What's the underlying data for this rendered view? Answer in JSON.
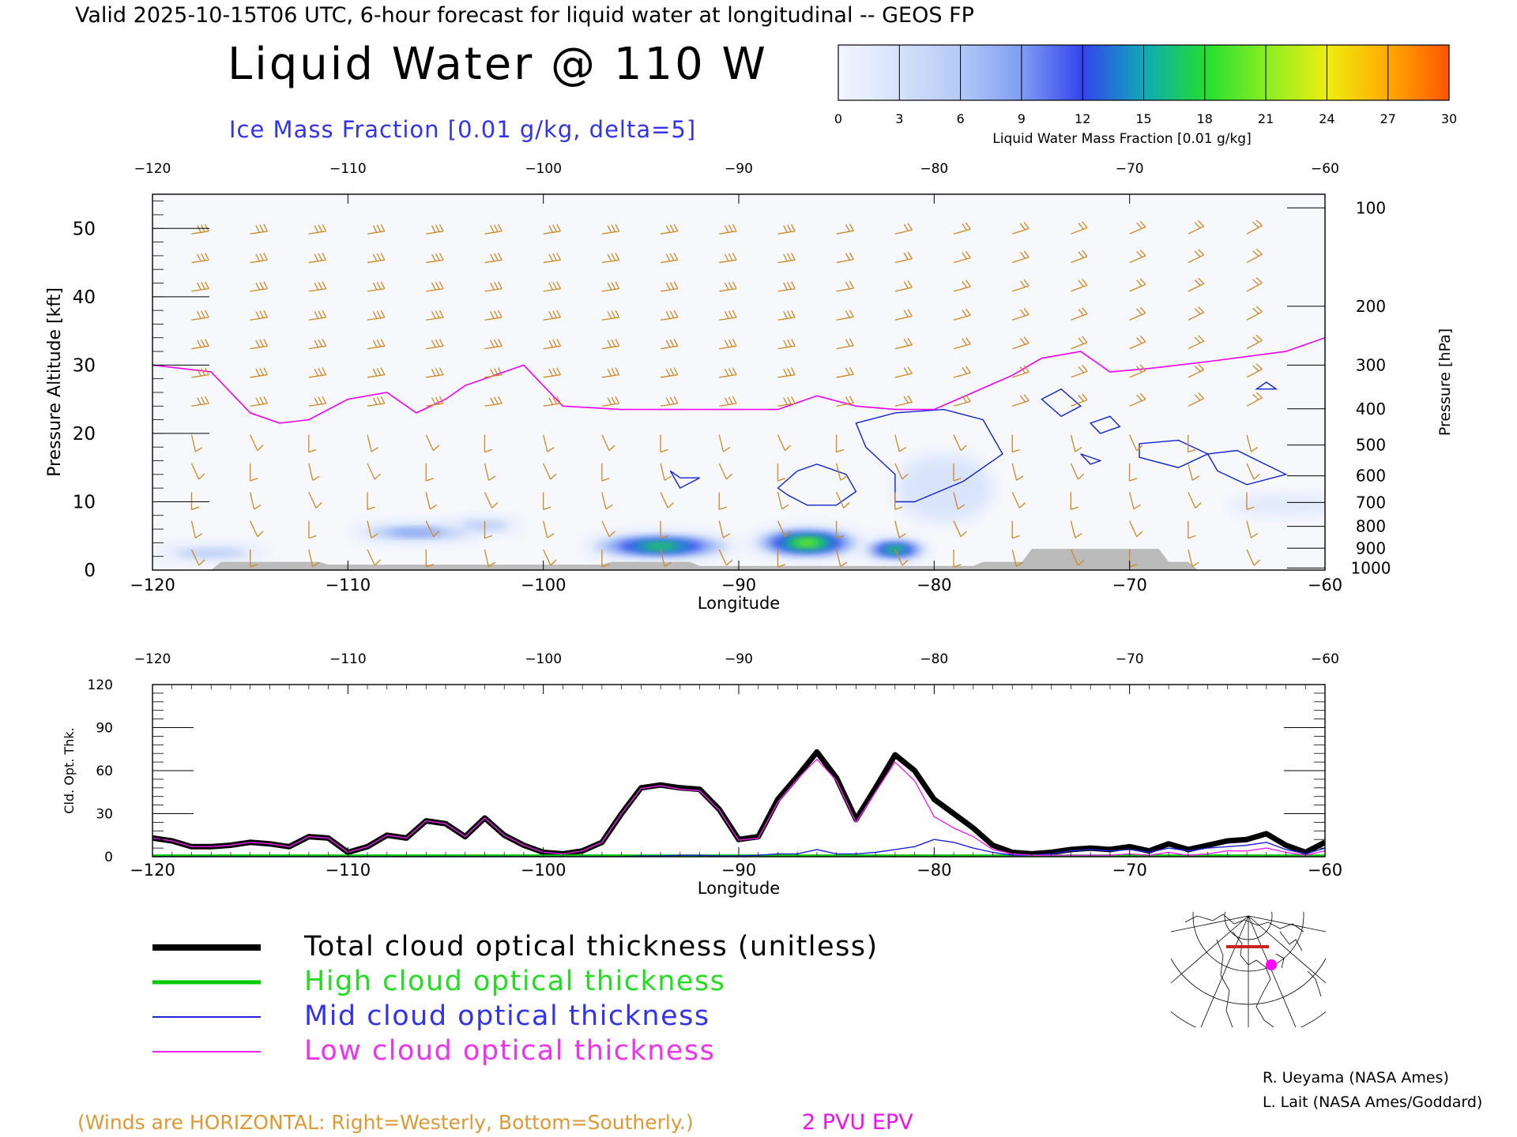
{
  "header": {
    "valid_line": "Valid 2025-10-15T06 UTC, 6-hour forecast for liquid water at longitudinal -- GEOS FP",
    "main_title": "Liquid Water @ 110 W",
    "subtitle": "Ice Mass Fraction [0.01 g/kg, delta=5]"
  },
  "colorbar": {
    "ticks": [
      "0",
      "3",
      "6",
      "9",
      "12",
      "15",
      "18",
      "21",
      "24",
      "27",
      "30"
    ],
    "label": "Liquid Water Mass Fraction [0.01 g/kg]",
    "colors": [
      "#f2f6ff",
      "#d6e2fb",
      "#b3c9f7",
      "#7f9df2",
      "#3344ee",
      "#11a8b8",
      "#22dd33",
      "#88ee22",
      "#eeee11",
      "#ffaa00",
      "#ff5500"
    ]
  },
  "colors": {
    "wind_barbs": "#cc8822",
    "ice_contours": "#1122cc",
    "epv_line": "#ee00ee",
    "terrain": "#bbbbbb",
    "total_line": "#000000",
    "high_line": "#00cc00",
    "mid_line": "#2222dd",
    "low_line": "#ee22ee"
  },
  "chart_data": [
    {
      "type": "heatmap",
      "title": "Liquid Water @ 110 W",
      "subtitle": "Ice Mass Fraction [0.01 g/kg, delta=5]",
      "xlabel": "Longitude",
      "ylabel": "Pressure Altitude [kft]",
      "ylabel_right": "Pressure [hPa]",
      "xlim": [
        -120,
        -60
      ],
      "ylim": [
        0,
        55
      ],
      "x_ticks": [
        -120,
        -110,
        -100,
        -90,
        -80,
        -70,
        -60
      ],
      "x_tick_labels": [
        "−120",
        "−110",
        "−100",
        "−90",
        "−80",
        "−70",
        "−60"
      ],
      "y_ticks": [
        0,
        10,
        20,
        30,
        40,
        50
      ],
      "y_tick_labels": [
        "0",
        "10",
        "20",
        "30",
        "40",
        "50"
      ],
      "pressure_labels": [
        "100",
        "200",
        "300",
        "400",
        "500",
        "600",
        "700",
        "800",
        "900",
        "1000"
      ],
      "pressure_label_altitudes_kft": [
        53,
        38.6,
        30,
        23.6,
        18.3,
        13.8,
        9.9,
        6.4,
        3.2,
        0.3
      ],
      "liquid_water_blobs": [
        {
          "lon": -94,
          "alt": 3.5,
          "lon_spread": 4,
          "alt_spread": 1.8,
          "max_value": 20
        },
        {
          "lon": -86.5,
          "alt": 4,
          "lon_spread": 3,
          "alt_spread": 2.2,
          "max_value": 21
        },
        {
          "lon": -82,
          "alt": 3,
          "lon_spread": 1.8,
          "alt_spread": 1.5,
          "max_value": 19
        },
        {
          "lon": -106.5,
          "alt": 5.5,
          "lon_spread": 3.5,
          "alt_spread": 1.2,
          "max_value": 9
        },
        {
          "lon": -117,
          "alt": 2.5,
          "lon_spread": 3,
          "alt_spread": 1,
          "max_value": 8
        },
        {
          "lon": -103,
          "alt": 6.5,
          "lon_spread": 2,
          "alt_spread": 1,
          "max_value": 7
        },
        {
          "lon": -79.5,
          "alt": 12,
          "lon_spread": 2.5,
          "alt_spread": 5,
          "max_value": 4
        },
        {
          "lon": -62,
          "alt": 9.5,
          "lon_spread": 3,
          "alt_spread": 1.2,
          "max_value": 5
        }
      ],
      "ice_contour_regions": [
        [
          [
            -88,
            12
          ],
          [
            -87,
            14.5
          ],
          [
            -86,
            15.5
          ],
          [
            -84.5,
            14
          ],
          [
            -84,
            11.5
          ],
          [
            -85,
            9.5
          ],
          [
            -86.5,
            9.5
          ],
          [
            -87.5,
            11
          ]
        ],
        [
          [
            -84,
            21.5
          ],
          [
            -82,
            23
          ],
          [
            -79.5,
            23.5
          ],
          [
            -77.5,
            22
          ],
          [
            -76.5,
            17
          ],
          [
            -78.5,
            13
          ],
          [
            -81,
            10
          ],
          [
            -82,
            10
          ],
          [
            -82,
            14
          ],
          [
            -83.5,
            18
          ]
        ],
        [
          [
            -74.5,
            25
          ],
          [
            -73.5,
            26.5
          ],
          [
            -72.5,
            24
          ],
          [
            -73.5,
            22.5
          ]
        ],
        [
          [
            -72,
            21.5
          ],
          [
            -71,
            22.5
          ],
          [
            -70.5,
            21
          ],
          [
            -71.5,
            20
          ]
        ],
        [
          [
            -69.5,
            18.5
          ],
          [
            -67.5,
            19
          ],
          [
            -66,
            17
          ],
          [
            -67.5,
            15
          ],
          [
            -69.5,
            16.5
          ]
        ],
        [
          [
            -66,
            17
          ],
          [
            -64.5,
            17.5
          ],
          [
            -62,
            14
          ],
          [
            -64,
            12.5
          ],
          [
            -65.5,
            14.5
          ]
        ],
        [
          [
            -63,
            27.5
          ],
          [
            -62.5,
            26.5
          ],
          [
            -63.5,
            26.5
          ]
        ],
        [
          [
            -93.5,
            14.5
          ],
          [
            -93,
            13.5
          ],
          [
            -92,
            13.5
          ],
          [
            -93,
            12
          ]
        ],
        [
          [
            -72.5,
            17
          ],
          [
            -71.5,
            16
          ],
          [
            -72,
            15.5
          ]
        ]
      ],
      "epv_2pvu_line": {
        "lon": [
          -120,
          -117,
          -115,
          -113.5,
          -112,
          -110,
          -108,
          -106.5,
          -105,
          -104,
          -102,
          -101,
          -99,
          -96,
          -92,
          -88,
          -86,
          -84,
          -82,
          -80,
          -78,
          -76,
          -74.5,
          -72.5,
          -71,
          -69,
          -66,
          -62,
          -60
        ],
        "alt_kft": [
          30,
          29,
          23,
          21.5,
          22,
          25,
          26,
          23,
          25,
          27,
          29,
          30,
          24,
          23.5,
          23.5,
          23.5,
          25.5,
          24,
          23.5,
          23.5,
          26,
          28.5,
          31,
          32,
          29,
          29.5,
          30.5,
          32,
          34
        ]
      },
      "terrain": {
        "lon": [
          -120,
          -117,
          -116.5,
          -111.5,
          -111,
          -97,
          -96.5,
          -92.5,
          -92,
          -78,
          -77.5,
          -75.5,
          -75,
          -68.5,
          -68,
          -67,
          -66.5
        ],
        "alt_kft": [
          0,
          0,
          1.2,
          1.2,
          0.8,
          0.8,
          1.2,
          1.2,
          0.6,
          0.6,
          1.2,
          1.2,
          3.1,
          3.1,
          1.2,
          1.2,
          0
        ]
      }
    },
    {
      "type": "line",
      "xlabel": "Longitude",
      "ylabel": "Cld. Opt. Thk.",
      "xlim": [
        -120,
        -60
      ],
      "ylim": [
        0,
        120
      ],
      "x_ticks": [
        -120,
        -110,
        -100,
        -90,
        -80,
        -70,
        -60
      ],
      "x_tick_labels": [
        "−120",
        "−110",
        "−100",
        "−90",
        "−80",
        "−70",
        "−60"
      ],
      "y_ticks": [
        0,
        30,
        60,
        90,
        120
      ],
      "y_tick_labels": [
        "0",
        "30",
        "60",
        "90",
        "120"
      ],
      "x": [
        -120,
        -119,
        -118,
        -117,
        -116,
        -115,
        -114,
        -113,
        -112,
        -111,
        -110,
        -109,
        -108,
        -107,
        -106,
        -105,
        -104,
        -103,
        -102,
        -101,
        -100,
        -99,
        -98,
        -97,
        -96,
        -95,
        -94,
        -93,
        -92,
        -91,
        -90,
        -89,
        -88,
        -87,
        -86,
        -85,
        -84,
        -83,
        -82,
        -81,
        -80,
        -79,
        -78,
        -77,
        -76,
        -75,
        -74,
        -73,
        -72,
        -71,
        -70,
        -69,
        -68,
        -67,
        -66,
        -65,
        -64,
        -63,
        -62,
        -61,
        -60
      ],
      "series": [
        {
          "name": "Total cloud optical thickness (unitless)",
          "values": [
            13,
            11,
            7,
            7,
            8,
            10,
            9,
            7,
            14,
            13,
            3,
            7,
            15,
            13,
            25,
            23,
            14,
            27,
            15,
            8,
            3,
            2,
            4,
            10,
            30,
            48,
            50,
            48,
            47,
            33,
            12,
            14,
            40,
            56,
            73,
            55,
            26,
            48,
            71,
            60,
            40,
            30,
            20,
            8,
            3,
            2,
            3,
            5,
            6,
            5,
            7,
            4,
            9,
            5,
            8,
            11,
            12,
            16,
            8,
            3,
            10
          ]
        },
        {
          "name": "High cloud optical thickness",
          "values": [
            0.5,
            0.5,
            0.5,
            0.5,
            0.5,
            0.5,
            0.5,
            0.5,
            0.5,
            0.5,
            0.5,
            0.5,
            0.5,
            0.5,
            0.5,
            0.5,
            0.5,
            0.5,
            0.5,
            0.5,
            0.5,
            0.5,
            0.5,
            0.5,
            0.5,
            0.5,
            0.5,
            0.5,
            0.5,
            0.5,
            0.5,
            0.5,
            0.5,
            0.5,
            0.5,
            0.5,
            0.5,
            0.5,
            0.5,
            0.5,
            0.5,
            0.5,
            0.5,
            0.5,
            0.5,
            0.5,
            0.5,
            0.5,
            0.5,
            0.5,
            0.5,
            0.5,
            0.5,
            0.5,
            0.5,
            0.5,
            0.5,
            0.5,
            0.5,
            0.5,
            0.5
          ]
        },
        {
          "name": "Mid cloud optical thickness",
          "values": [
            0,
            0,
            0,
            0,
            0,
            0,
            0,
            0,
            0,
            0,
            0,
            0,
            0,
            0,
            0,
            0,
            0,
            0,
            0,
            0,
            0,
            0,
            0,
            0,
            0,
            0.5,
            0.5,
            1,
            1,
            0.5,
            0.5,
            1,
            2,
            2,
            5,
            2,
            2,
            3,
            5,
            7,
            12,
            10,
            6,
            3,
            1,
            1,
            2,
            4,
            5,
            4,
            5,
            3,
            6,
            4,
            6,
            7,
            8,
            10,
            5,
            2,
            6
          ]
        },
        {
          "name": "Low cloud optical thickness",
          "values": [
            13,
            11,
            7,
            7,
            8,
            10,
            9,
            7,
            14,
            13,
            3,
            7,
            15,
            13,
            25,
            23,
            14,
            27,
            15,
            8,
            3,
            2,
            4,
            10,
            30,
            47.5,
            49.5,
            47,
            46,
            32.5,
            11.5,
            13,
            38,
            54,
            68,
            53,
            24,
            45,
            66,
            53,
            28,
            20,
            14,
            5,
            2,
            1,
            1,
            1,
            1,
            1,
            2,
            1,
            3,
            1,
            2,
            4,
            4,
            6,
            3,
            1,
            4
          ]
        }
      ]
    }
  ],
  "legend": {
    "total": "Total cloud optical thickness (unitless)",
    "high": "High cloud optical thickness",
    "mid": "Mid cloud optical thickness",
    "low": "Low cloud optical thickness"
  },
  "footer": {
    "winds_note": "(Winds are HORIZONTAL: Right=Westerly, Bottom=Southerly.)",
    "epv_label": "2 PVU EPV",
    "credit_1": "R. Ueyama (NASA Ames)",
    "credit_2": "L. Lait (NASA Ames/Goddard)"
  },
  "inset_map": {
    "marker_color": "#ff00ff",
    "cross_section_color": "#cc2222"
  }
}
